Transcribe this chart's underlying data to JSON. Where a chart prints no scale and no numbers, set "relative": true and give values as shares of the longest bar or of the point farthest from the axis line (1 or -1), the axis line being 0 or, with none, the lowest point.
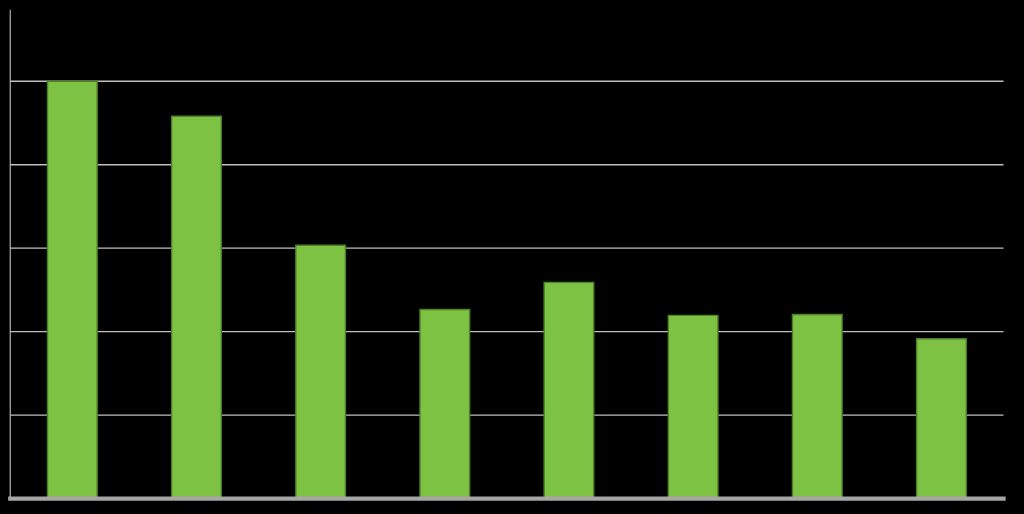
{
  "chart_data": {
    "type": "bar",
    "relative": true,
    "categories": [
      null,
      null,
      null,
      null,
      null,
      null,
      null,
      null
    ],
    "values": [
      1,
      0.916,
      0.607,
      0.453,
      0.518,
      0.439,
      0.441,
      0.383
    ],
    "color": "#7dc242",
    "grid": "y"
  }
}
